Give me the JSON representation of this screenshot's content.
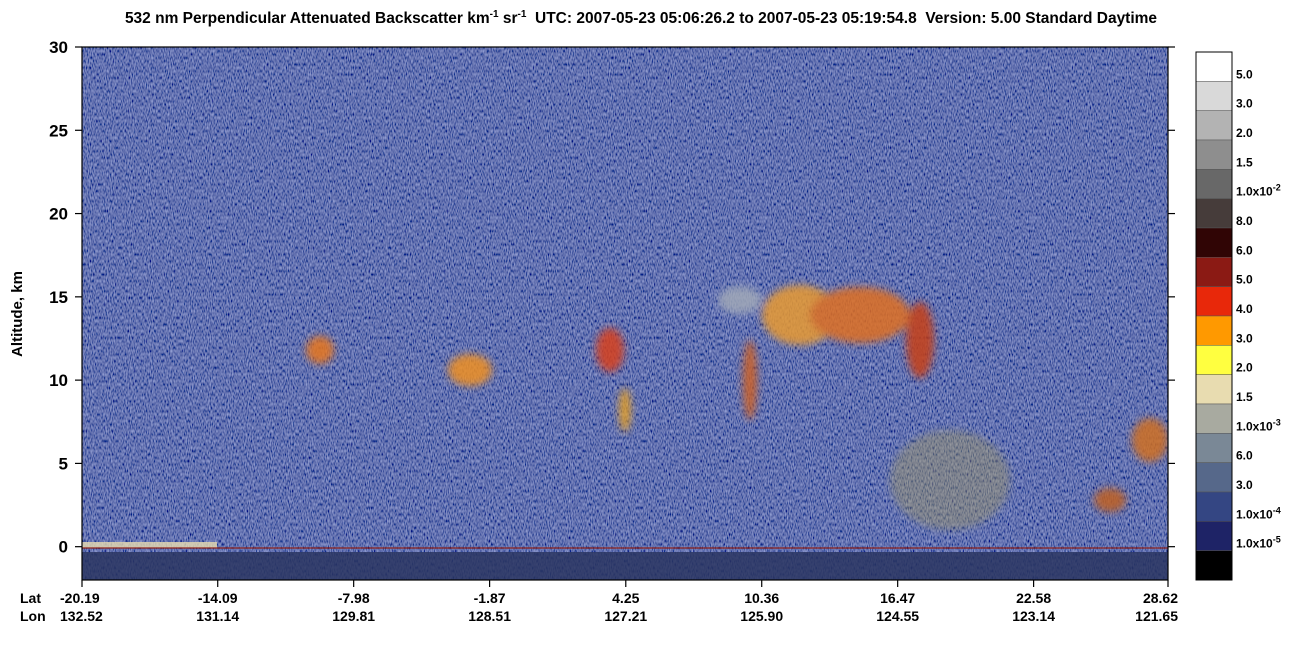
{
  "chart_data": {
    "type": "curtain",
    "title_parts": [
      "532 nm Perpendicular Attenuated Backscatter km",
      "-1",
      " sr",
      "-1",
      "  UTC: 2007-05-23 05:06:26.2 to 2007-05-23 05:19:54.8  Version: 5.00 Standard Daytime"
    ],
    "y_label": "Altitude, km",
    "ylim": [
      -2,
      30
    ],
    "yticks": [
      0,
      5,
      10,
      15,
      20,
      25,
      30
    ],
    "xlim": [
      -20.19,
      28.62
    ],
    "xticks": [
      -20.19,
      -14.09,
      -7.98,
      -1.87,
      4.25,
      10.36,
      16.47,
      22.58,
      28.62
    ],
    "lon_labels": [
      "132.52",
      "131.14",
      "129.81",
      "128.51",
      "127.21",
      "125.90",
      "124.55",
      "123.14",
      "121.65"
    ],
    "x_row_labels": [
      "Lat",
      "Lon"
    ],
    "colorbar": {
      "colors": [
        "#ffffff",
        "#d9d9d9",
        "#b3b3b3",
        "#8e8e8e",
        "#686868",
        "#463c3a",
        "#300505",
        "#8b1a14",
        "#e8280a",
        "#ff9900",
        "#ffff40",
        "#e8dcb0",
        "#a8aaa0",
        "#7a8896",
        "#56688a",
        "#344683",
        "#1e2366",
        "#000000"
      ],
      "labels": [
        "5.0",
        "3.0",
        "2.0",
        "1.5",
        [
          "1.0x10",
          "-2"
        ],
        "8.0",
        "6.0",
        "5.0",
        "4.0",
        "3.0",
        "2.0",
        "1.5",
        [
          "1.0x10",
          "-3"
        ],
        "6.0",
        "3.0",
        [
          "1.0x10",
          "-4"
        ],
        [
          "1.0x10",
          "-5"
        ]
      ]
    }
  }
}
